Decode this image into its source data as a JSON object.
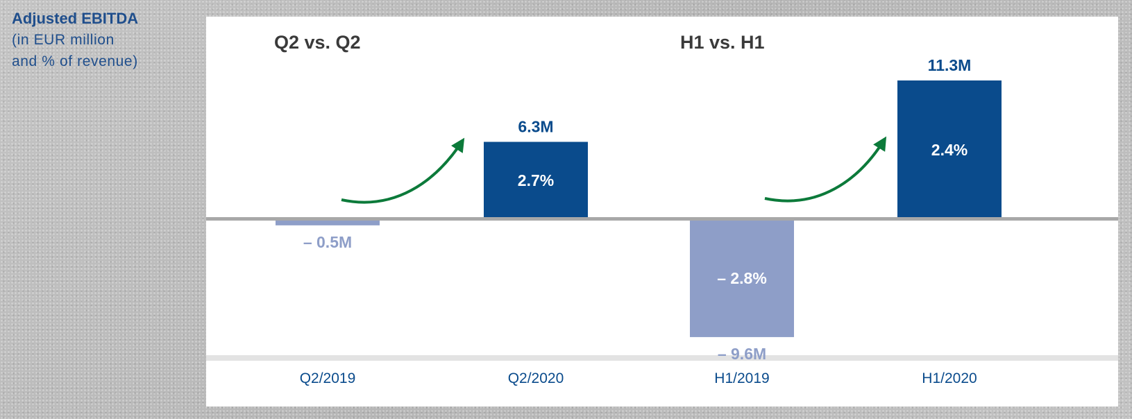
{
  "heading": {
    "title": "Adjusted EBITDA",
    "subtitle_line1": "(in EUR million",
    "subtitle_line2": "and % of revenue)"
  },
  "chart_data": {
    "type": "bar",
    "groups": [
      {
        "label": "Q2 vs. Q2",
        "categories": [
          0,
          1
        ]
      },
      {
        "label": "H1 vs. H1",
        "categories": [
          2,
          3
        ]
      }
    ],
    "categories": [
      "Q2/2019",
      "Q2/2020",
      "H1/2019",
      "H1/2020"
    ],
    "values": [
      -0.5,
      6.3,
      -9.6,
      11.3
    ],
    "value_labels": [
      "– 0.5M",
      "6.3M",
      "– 9.6M",
      "11.3M"
    ],
    "percent_labels": [
      "",
      "2.7%",
      "– 2.8%",
      "2.4%"
    ],
    "ylim": [
      -13,
      15
    ],
    "grid": false,
    "colors": {
      "positive": "#0a4b8c",
      "negative": "#8e9ec8",
      "arrow": "#0c7a3a",
      "text_dark": "#3a3a3a",
      "axis": "#a8a8a8"
    }
  }
}
